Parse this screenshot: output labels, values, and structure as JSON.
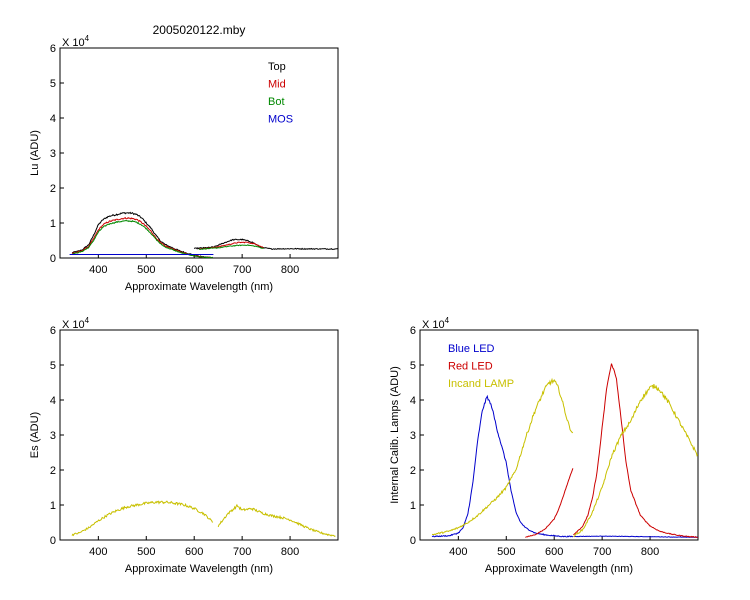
{
  "figure_title": "2005020122.mby",
  "chart_data": [
    {
      "id": "lu",
      "type": "line",
      "title": "2005020122.mby",
      "xlabel": "Approximate Wavelength (nm)",
      "ylabel": "Lu (ADU)",
      "exponent_label": "X 10",
      "exponent": "4",
      "xlim": [
        320,
        900
      ],
      "ylim": [
        0,
        60000
      ],
      "x_ticks": [
        400,
        500,
        600,
        700,
        800
      ],
      "x_tick_labels": [
        "400",
        "500",
        "600",
        "700",
        "800"
      ],
      "y_ticks": [
        0,
        10000,
        20000,
        30000,
        40000,
        50000,
        60000
      ],
      "y_tick_labels": [
        "0",
        "1",
        "2",
        "3",
        "4",
        "5",
        "6"
      ],
      "grid": false,
      "legend_position": "top-right",
      "series": [
        {
          "name": "Top",
          "color": "#000000",
          "noise": 400,
          "x": [
            345,
            365,
            380,
            390,
            400,
            410,
            420,
            430,
            440,
            450,
            460,
            470,
            480,
            490,
            500,
            510,
            520,
            530,
            540,
            550,
            560,
            570,
            580,
            590,
            600,
            610,
            620,
            630,
            640
          ],
          "y": [
            1500,
            2200,
            3800,
            6500,
            9500,
            11000,
            11800,
            12200,
            12500,
            12800,
            12900,
            12800,
            12400,
            11500,
            10000,
            8500,
            6500,
            4800,
            3800,
            3200,
            2600,
            2000,
            1600,
            1200,
            800,
            500,
            300,
            200,
            150
          ]
        },
        {
          "name": "Mid",
          "color": "#cc0000",
          "noise": 400,
          "x": [
            345,
            365,
            380,
            390,
            400,
            410,
            420,
            430,
            440,
            450,
            460,
            470,
            480,
            490,
            500,
            510,
            520,
            530,
            540,
            550,
            560,
            570,
            580,
            590,
            600,
            610,
            620,
            630,
            640
          ],
          "y": [
            1300,
            2000,
            3300,
            5500,
            8000,
            9500,
            10300,
            10700,
            11000,
            11300,
            11400,
            11300,
            11000,
            10200,
            9000,
            7600,
            5800,
            4300,
            3400,
            2900,
            2300,
            1800,
            1400,
            1000,
            700,
            450,
            250,
            180,
            120
          ]
        },
        {
          "name": "Bot",
          "color": "#008800",
          "noise": 300,
          "x": [
            345,
            365,
            380,
            390,
            400,
            410,
            420,
            430,
            440,
            450,
            460,
            470,
            480,
            490,
            500,
            510,
            520,
            530,
            540,
            550,
            560,
            570,
            580,
            590,
            600,
            610,
            620,
            630,
            640
          ],
          "y": [
            1100,
            1800,
            3000,
            5000,
            7400,
            8800,
            9600,
            10000,
            10300,
            10500,
            10600,
            10500,
            10200,
            9500,
            8400,
            7000,
            5400,
            4000,
            3100,
            2600,
            2100,
            1600,
            1200,
            900,
            600,
            400,
            220,
            150,
            100
          ]
        },
        {
          "name": "MOS",
          "color": "#0000cc",
          "noise": 0,
          "x": [
            340,
            640
          ],
          "y": [
            1000,
            1000
          ]
        },
        {
          "name": "",
          "color": "#000000",
          "noise": 350,
          "x": [
            600,
            620,
            640,
            660,
            680,
            700,
            720,
            740,
            760,
            800,
            850,
            900
          ],
          "y": [
            2700,
            2900,
            3100,
            4200,
            5200,
            5300,
            4600,
            3000,
            2600,
            2650,
            2600,
            2600
          ]
        },
        {
          "name": "",
          "color": "#cc0000",
          "noise": 300,
          "x": [
            610,
            630,
            650,
            670,
            690,
            710,
            730,
            745
          ],
          "y": [
            2600,
            2800,
            3200,
            3800,
            4400,
            4500,
            3900,
            2900
          ]
        },
        {
          "name": "",
          "color": "#008800",
          "noise": 250,
          "x": [
            610,
            630,
            650,
            670,
            690,
            710,
            730,
            745
          ],
          "y": [
            2500,
            2700,
            2900,
            3300,
            3600,
            3700,
            3300,
            2700
          ]
        }
      ]
    },
    {
      "id": "es",
      "type": "line",
      "title": "",
      "xlabel": "Approximate Wavelength (nm)",
      "ylabel": "Es  (ADU)",
      "exponent_label": "X 10",
      "exponent": "4",
      "xlim": [
        320,
        900
      ],
      "ylim": [
        0,
        60000
      ],
      "x_ticks": [
        400,
        500,
        600,
        700,
        800
      ],
      "x_tick_labels": [
        "400",
        "500",
        "600",
        "700",
        "800"
      ],
      "y_ticks": [
        0,
        10000,
        20000,
        30000,
        40000,
        50000,
        60000
      ],
      "y_tick_labels": [
        "0",
        "1",
        "2",
        "3",
        "4",
        "5",
        "6"
      ],
      "grid": false,
      "series": [
        {
          "name": "",
          "color": "#c8c000",
          "noise": 700,
          "x": [
            345,
            360,
            380,
            400,
            420,
            440,
            460,
            480,
            500,
            520,
            540,
            560,
            580,
            600,
            620,
            640
          ],
          "y": [
            1500,
            2000,
            3500,
            5500,
            7200,
            8500,
            9500,
            10000,
            10500,
            10800,
            10800,
            10500,
            10000,
            9000,
            7500,
            5000
          ]
        },
        {
          "name": "",
          "color": "#c8c000",
          "noise": 700,
          "x": [
            650,
            670,
            690,
            700,
            720,
            740,
            760,
            780,
            800,
            820,
            840,
            860,
            880,
            895
          ],
          "y": [
            4000,
            7500,
            9800,
            8500,
            9000,
            7800,
            7000,
            6500,
            5800,
            4500,
            3200,
            2200,
            1500,
            1200
          ]
        }
      ]
    },
    {
      "id": "lamps",
      "type": "line",
      "title": "",
      "xlabel": "Approximate Wavelength (nm)",
      "ylabel": "Internal Calib. Lamps (ADU)",
      "exponent_label": "X 10",
      "exponent": "4",
      "xlim": [
        320,
        900
      ],
      "ylim": [
        0,
        60000
      ],
      "x_ticks": [
        400,
        500,
        600,
        700,
        800
      ],
      "x_tick_labels": [
        "400",
        "500",
        "600",
        "700",
        "800"
      ],
      "y_ticks": [
        0,
        10000,
        20000,
        30000,
        40000,
        50000,
        60000
      ],
      "y_tick_labels": [
        "0",
        "1",
        "2",
        "3",
        "4",
        "5",
        "6"
      ],
      "grid": false,
      "legend_position": "top-left",
      "series": [
        {
          "name": "Blue LED",
          "color": "#0000cc",
          "noise": 400,
          "x": [
            345,
            380,
            400,
            410,
            420,
            430,
            440,
            450,
            460,
            470,
            480,
            490,
            500,
            510,
            520,
            530,
            540,
            560,
            580,
            600,
            620,
            640
          ],
          "y": [
            1000,
            1200,
            2000,
            3500,
            7500,
            16000,
            28000,
            37000,
            41000,
            38000,
            32000,
            27000,
            22000,
            14000,
            8000,
            5000,
            3500,
            2000,
            1500,
            1200,
            1000,
            1000
          ]
        },
        {
          "name": "",
          "color": "#0000cc",
          "noise": 150,
          "x": [
            640,
            700,
            760,
            820,
            880,
            900
          ],
          "y": [
            1000,
            1100,
            1000,
            900,
            800,
            800
          ]
        },
        {
          "name": "Red LED",
          "color": "#cc0000",
          "noise": 200,
          "x": [
            540,
            560,
            580,
            600,
            610,
            620,
            630,
            640
          ],
          "y": [
            800,
            1500,
            3000,
            6000,
            9000,
            13000,
            17000,
            21000
          ]
        },
        {
          "name": "",
          "color": "#cc0000",
          "noise": 300,
          "x": [
            640,
            660,
            670,
            680,
            690,
            700,
            710,
            720,
            730,
            740,
            750,
            760,
            780,
            800,
            820,
            840,
            860,
            880,
            900
          ],
          "y": [
            1500,
            4000,
            7000,
            12000,
            20000,
            32000,
            44000,
            50500,
            46000,
            34000,
            22000,
            14000,
            7000,
            4000,
            2500,
            1800,
            1300,
            1000,
            800
          ]
        },
        {
          "name": "Incand LAMP",
          "color": "#c8c000",
          "noise": 600,
          "x": [
            345,
            380,
            400,
            420,
            440,
            460,
            480,
            500,
            520,
            540,
            560,
            580,
            590,
            600,
            610,
            620,
            630,
            640
          ],
          "y": [
            1500,
            2500,
            3500,
            5000,
            7000,
            9500,
            12000,
            15000,
            20000,
            29000,
            37000,
            43000,
            45000,
            45500,
            43000,
            38000,
            33000,
            30000
          ]
        },
        {
          "name": "",
          "color": "#c8c000",
          "noise": 600,
          "x": [
            640,
            660,
            680,
            700,
            720,
            740,
            760,
            780,
            800,
            810,
            820,
            840,
            860,
            880,
            900
          ],
          "y": [
            1000,
            3000,
            8000,
            15000,
            24000,
            30000,
            34000,
            40000,
            43500,
            44000,
            43000,
            39000,
            34000,
            29000,
            24000
          ]
        }
      ]
    }
  ]
}
